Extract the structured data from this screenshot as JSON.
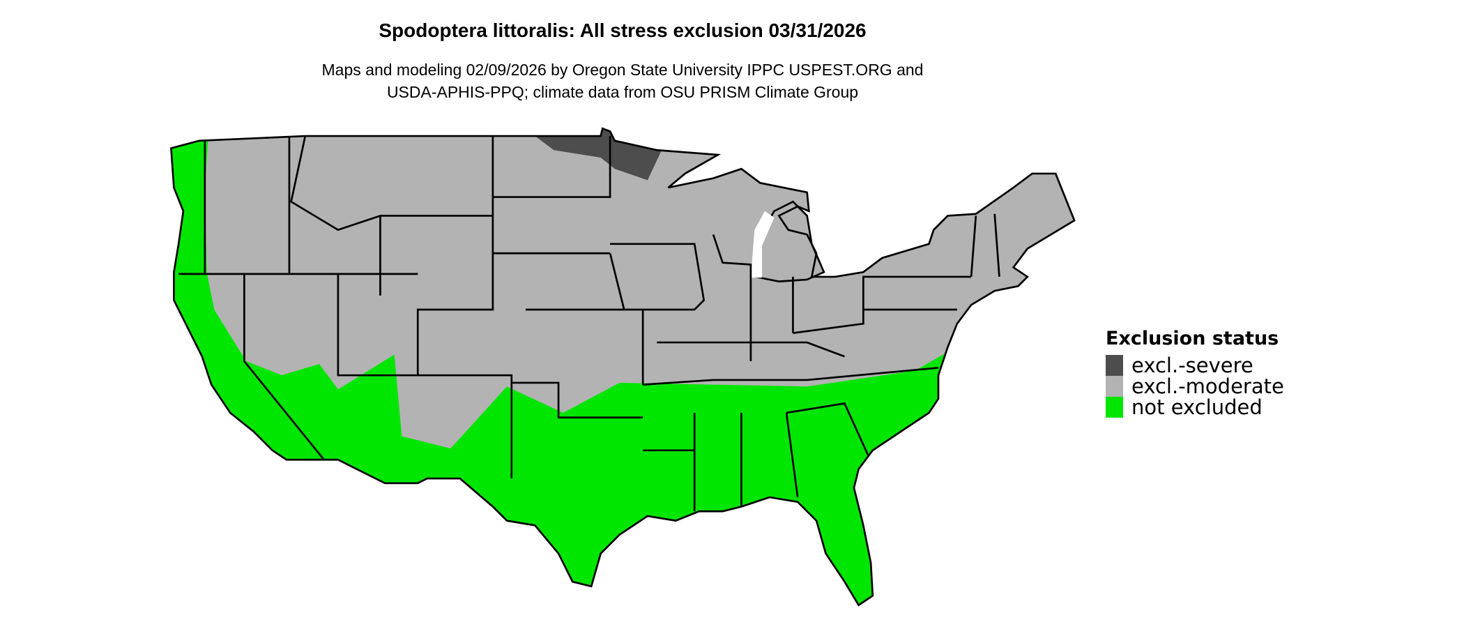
{
  "header": {
    "title": "Spodoptera littoralis: All stress exclusion 03/31/2026",
    "subtitle_line1": "Maps and modeling 02/09/2026 by Oregon State University IPPC USPEST.ORG and",
    "subtitle_line2": "USDA-APHIS-PPQ; climate data from OSU PRISM Climate Group"
  },
  "legend": {
    "title": "Exclusion status",
    "items": [
      {
        "label": "excl.-severe",
        "color": "#4d4d4d"
      },
      {
        "label": "excl.-moderate",
        "color": "#b3b3b3"
      },
      {
        "label": "not excluded",
        "color": "#00e600"
      }
    ]
  },
  "map": {
    "region": "contiguous United States",
    "border_color": "#000000"
  }
}
